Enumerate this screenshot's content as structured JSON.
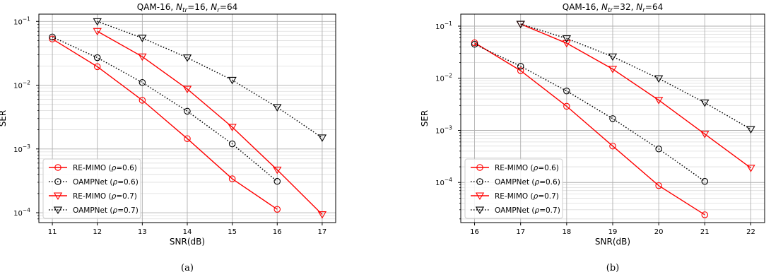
{
  "chart_data": [
    {
      "type": "line",
      "caption": "(a)",
      "title": {
        "base": "QAM-16, ",
        "sym1": "N",
        "sub1": "tr",
        "eq1": "=16, ",
        "sym2": "N",
        "sub2": "r",
        "eq2": "=64"
      },
      "xlabel": "SNR(dB)",
      "ylabel": "SER",
      "xlim": [
        10.7,
        17.3
      ],
      "ylim": [
        7e-05,
        0.13
      ],
      "yscale": "log",
      "grid": true,
      "legend_position": "bottom-left",
      "xticks": [
        11,
        12,
        13,
        14,
        15,
        16,
        17
      ],
      "yticks": [
        {
          "v": 0.1,
          "m": "10",
          "e": "−1"
        },
        {
          "v": 0.01,
          "m": "10",
          "e": "−2"
        },
        {
          "v": 0.001,
          "m": "10",
          "e": "−3"
        },
        {
          "v": 0.0001,
          "m": "10",
          "e": "−4"
        }
      ],
      "series": [
        {
          "name": "RE-MIMO (ρ=0.6)",
          "legend": {
            "pre": "RE-MIMO (",
            "greek": "ρ",
            "post": "=0.6)"
          },
          "color": "#ff0000",
          "line": "solid",
          "marker": "circle",
          "x": [
            11,
            12,
            13,
            14,
            15,
            16
          ],
          "y": [
            0.053,
            0.0195,
            0.0058,
            0.00145,
            0.00034,
            0.000113
          ]
        },
        {
          "name": "OAMPNet (ρ=0.6)",
          "legend": {
            "pre": "OAMPNet (",
            "greek": "ρ",
            "post": "=0.6)"
          },
          "color": "#000000",
          "line": "dotted",
          "marker": "circle",
          "x": [
            11,
            12,
            13,
            14,
            15,
            16
          ],
          "y": [
            0.057,
            0.027,
            0.011,
            0.0039,
            0.0012,
            0.00031
          ]
        },
        {
          "name": "RE-MIMO (ρ=0.7)",
          "legend": {
            "pre": "RE-MIMO (",
            "greek": "ρ",
            "post": "=0.7)"
          },
          "color": "#ff0000",
          "line": "solid",
          "marker": "triangle-down",
          "x": [
            12,
            13,
            14,
            15,
            16,
            17
          ],
          "y": [
            0.07,
            0.028,
            0.0087,
            0.0022,
            0.00047,
            9.4e-05
          ]
        },
        {
          "name": "OAMPNet (ρ=0.7)",
          "legend": {
            "pre": "OAMPNet (",
            "greek": "ρ",
            "post": "=0.7)"
          },
          "color": "#000000",
          "line": "dotted",
          "marker": "triangle-down",
          "x": [
            12,
            13,
            14,
            15,
            16,
            17
          ],
          "y": [
            0.1,
            0.055,
            0.027,
            0.012,
            0.0045,
            0.0015
          ]
        }
      ]
    },
    {
      "type": "line",
      "caption": "(b)",
      "title": {
        "base": "QAM-16, ",
        "sym1": "N",
        "sub1": "tr",
        "eq1": "=32, ",
        "sym2": "N",
        "sub2": "r",
        "eq2": "=64"
      },
      "xlabel": "SNR(dB)",
      "ylabel": "SER",
      "xlim": [
        15.7,
        22.3
      ],
      "ylim": [
        1.7e-05,
        0.17
      ],
      "yscale": "log",
      "grid": true,
      "legend_position": "bottom-left",
      "xticks": [
        16,
        17,
        18,
        19,
        20,
        21,
        22
      ],
      "yticks": [
        {
          "v": 0.1,
          "m": "10",
          "e": "−1"
        },
        {
          "v": 0.01,
          "m": "10",
          "e": "−2"
        },
        {
          "v": 0.001,
          "m": "10",
          "e": "−3"
        },
        {
          "v": 0.0001,
          "m": "10",
          "e": "−4"
        }
      ],
      "series": [
        {
          "name": "RE-MIMO (ρ=0.6)",
          "legend": {
            "pre": "RE-MIMO (",
            "greek": "ρ",
            "post": "=0.6)"
          },
          "color": "#ff0000",
          "line": "solid",
          "marker": "circle",
          "x": [
            16,
            17,
            18,
            19,
            20,
            21
          ],
          "y": [
            0.048,
            0.014,
            0.0029,
            0.0005,
            8.7e-05,
            2.4e-05
          ]
        },
        {
          "name": "OAMPNet (ρ=0.6)",
          "legend": {
            "pre": "OAMPNet (",
            "greek": "ρ",
            "post": "=0.6)"
          },
          "color": "#000000",
          "line": "dotted",
          "marker": "circle",
          "x": [
            16,
            17,
            18,
            19,
            20,
            21
          ],
          "y": [
            0.045,
            0.017,
            0.0057,
            0.00168,
            0.00044,
            0.000105
          ]
        },
        {
          "name": "RE-MIMO (ρ=0.7)",
          "legend": {
            "pre": "RE-MIMO (",
            "greek": "ρ",
            "post": "=0.7)"
          },
          "color": "#ff0000",
          "line": "solid",
          "marker": "triangle-down",
          "x": [
            17,
            18,
            19,
            20,
            21,
            22
          ],
          "y": [
            0.11,
            0.047,
            0.015,
            0.0038,
            0.00085,
            0.00019
          ]
        },
        {
          "name": "OAMPNet (ρ=0.7)",
          "legend": {
            "pre": "OAMPNet (",
            "greek": "ρ",
            "post": "=0.7)"
          },
          "color": "#000000",
          "line": "dotted",
          "marker": "triangle-down",
          "x": [
            17,
            18,
            19,
            20,
            21,
            22
          ],
          "y": [
            0.11,
            0.058,
            0.026,
            0.0099,
            0.0034,
            0.00105
          ]
        }
      ]
    }
  ]
}
